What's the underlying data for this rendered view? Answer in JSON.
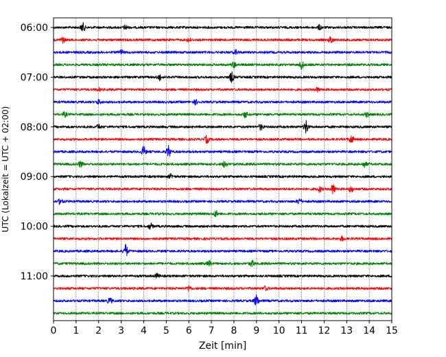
{
  "chart_data": {
    "type": "line",
    "title": "",
    "xlabel": "Zeit  [min]",
    "ylabel": "UTC (Lokalzeit = UTC + 02:00)",
    "xlim": [
      0,
      15
    ],
    "x_ticks": [
      0,
      1,
      2,
      3,
      4,
      5,
      6,
      7,
      8,
      9,
      10,
      11,
      12,
      13,
      14,
      15
    ],
    "grid": "vertical dotted",
    "row_interval_minutes": 15,
    "first_row_utc": "06:00",
    "y_ticks": [
      "06:00",
      "07:00",
      "08:00",
      "09:00",
      "10:00",
      "11:00"
    ],
    "colors": [
      "#000000",
      "#ff0000",
      "#0000ff",
      "#008000"
    ],
    "series": [
      {
        "start": "06:00",
        "color": "#000000",
        "events": [
          {
            "t": 1.3,
            "amp": 6
          },
          {
            "t": 3.2,
            "amp": 3
          },
          {
            "t": 11.8,
            "amp": 3
          }
        ]
      },
      {
        "start": "06:15",
        "color": "#ff0000",
        "events": [
          {
            "t": 0.4,
            "amp": 4
          },
          {
            "t": 6.0,
            "amp": 3
          },
          {
            "t": 12.3,
            "amp": 5
          }
        ]
      },
      {
        "start": "06:30",
        "color": "#0000ff",
        "events": [
          {
            "t": 3.0,
            "amp": 3
          },
          {
            "t": 8.1,
            "amp": 3
          }
        ]
      },
      {
        "start": "06:45",
        "color": "#008000",
        "events": [
          {
            "t": 8.0,
            "amp": 4
          },
          {
            "t": 11.0,
            "amp": 6
          }
        ]
      },
      {
        "start": "07:00",
        "color": "#000000",
        "events": [
          {
            "t": 4.7,
            "amp": 4
          },
          {
            "t": 7.9,
            "amp": 7
          }
        ]
      },
      {
        "start": "07:15",
        "color": "#ff0000",
        "events": [
          {
            "t": 2.0,
            "amp": 2
          },
          {
            "t": 11.7,
            "amp": 3
          }
        ]
      },
      {
        "start": "07:30",
        "color": "#0000ff",
        "events": [
          {
            "t": 2.0,
            "amp": 3
          },
          {
            "t": 6.3,
            "amp": 3
          }
        ]
      },
      {
        "start": "07:45",
        "color": "#008000",
        "events": [
          {
            "t": 0.5,
            "amp": 3
          },
          {
            "t": 8.5,
            "amp": 4
          },
          {
            "t": 13.9,
            "amp": 3
          }
        ]
      },
      {
        "start": "08:00",
        "color": "#000000",
        "events": [
          {
            "t": 2.0,
            "amp": 3
          },
          {
            "t": 9.2,
            "amp": 4
          },
          {
            "t": 11.2,
            "amp": 9
          }
        ]
      },
      {
        "start": "08:15",
        "color": "#ff0000",
        "events": [
          {
            "t": 6.8,
            "amp": 5
          },
          {
            "t": 13.2,
            "amp": 6
          }
        ]
      },
      {
        "start": "08:30",
        "color": "#0000ff",
        "events": [
          {
            "t": 4.0,
            "amp": 7
          },
          {
            "t": 5.1,
            "amp": 8
          }
        ]
      },
      {
        "start": "08:45",
        "color": "#008000",
        "events": [
          {
            "t": 1.2,
            "amp": 4
          },
          {
            "t": 7.6,
            "amp": 5
          },
          {
            "t": 13.8,
            "amp": 4
          }
        ]
      },
      {
        "start": "09:00",
        "color": "#000000",
        "events": [
          {
            "t": 5.2,
            "amp": 3
          }
        ]
      },
      {
        "start": "09:15",
        "color": "#ff0000",
        "events": [
          {
            "t": 11.8,
            "amp": 4
          },
          {
            "t": 12.4,
            "amp": 7
          },
          {
            "t": 13.2,
            "amp": 4
          }
        ]
      },
      {
        "start": "09:30",
        "color": "#0000ff",
        "events": [
          {
            "t": 0.3,
            "amp": 4
          },
          {
            "t": 10.9,
            "amp": 4
          }
        ]
      },
      {
        "start": "09:45",
        "color": "#008000",
        "events": [
          {
            "t": 7.2,
            "amp": 4
          }
        ]
      },
      {
        "start": "10:00",
        "color": "#000000",
        "events": [
          {
            "t": 4.3,
            "amp": 4
          }
        ]
      },
      {
        "start": "10:15",
        "color": "#ff0000",
        "events": [
          {
            "t": 12.8,
            "amp": 3
          }
        ]
      },
      {
        "start": "10:30",
        "color": "#0000ff",
        "events": [
          {
            "t": 3.2,
            "amp": 9
          }
        ]
      },
      {
        "start": "10:45",
        "color": "#008000",
        "events": [
          {
            "t": 6.9,
            "amp": 4
          },
          {
            "t": 8.8,
            "amp": 4
          }
        ]
      },
      {
        "start": "11:00",
        "color": "#000000",
        "events": [
          {
            "t": 4.6,
            "amp": 3
          }
        ]
      },
      {
        "start": "11:15",
        "color": "#ff0000",
        "events": [
          {
            "t": 6.0,
            "amp": 4
          },
          {
            "t": 9.4,
            "amp": 3
          }
        ]
      },
      {
        "start": "11:30",
        "color": "#0000ff",
        "events": [
          {
            "t": 2.5,
            "amp": 4
          },
          {
            "t": 9.0,
            "amp": 8
          }
        ]
      },
      {
        "start": "11:45",
        "color": "#008000",
        "events": []
      }
    ]
  }
}
